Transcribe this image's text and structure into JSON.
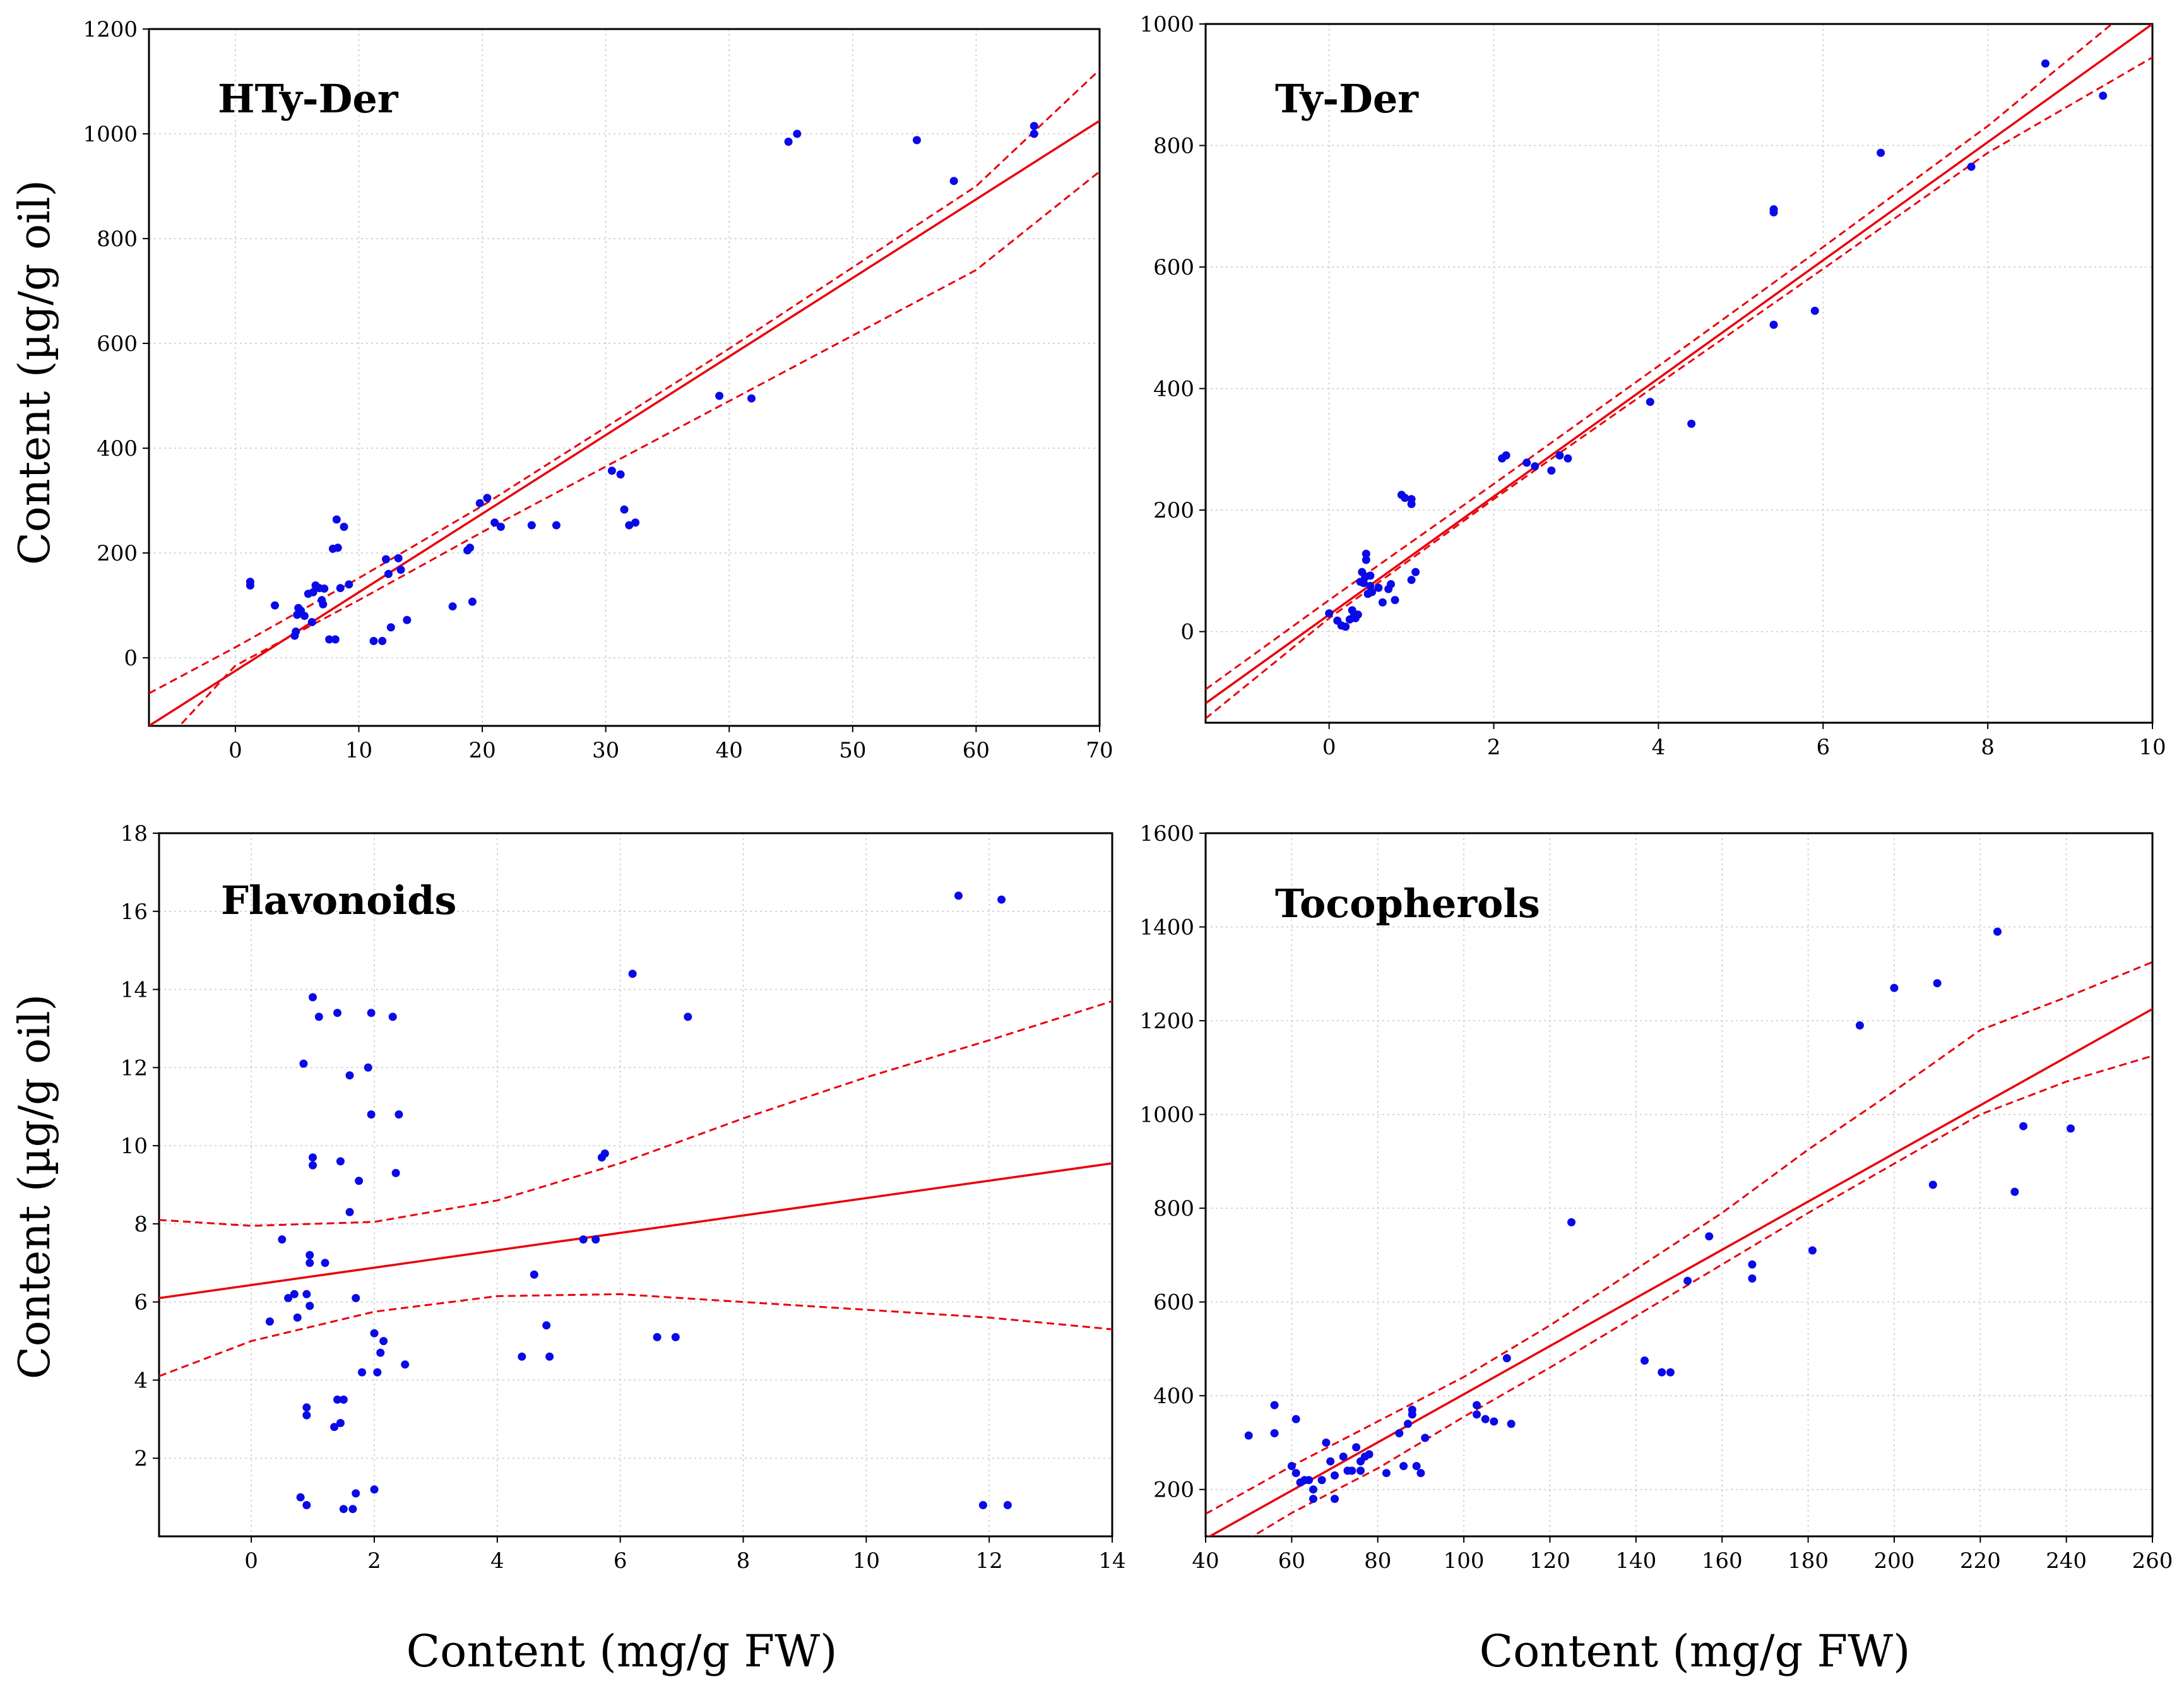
{
  "y_axis_label": "Content (µg/g oil)",
  "x_axis_label": "Content (mg/g FW)",
  "chart_data": [
    {
      "type": "scatter",
      "title": "HTy-Der",
      "xlim": [
        -7,
        70
      ],
      "ylim": [
        -130,
        1200
      ],
      "xticks": [
        0,
        10,
        20,
        30,
        40,
        50,
        60,
        70
      ],
      "yticks": [
        0,
        200,
        400,
        600,
        800,
        1000,
        1200
      ],
      "fit": [
        [
          -7,
          -130
        ],
        [
          70,
          1025
        ]
      ],
      "ci_upper": [
        [
          -7,
          -68
        ],
        [
          0,
          20
        ],
        [
          10,
          152
        ],
        [
          20,
          290
        ],
        [
          30,
          440
        ],
        [
          40,
          590
        ],
        [
          50,
          745
        ],
        [
          60,
          900
        ],
        [
          70,
          1122
        ]
      ],
      "ci_lower": [
        [
          -7,
          -193
        ],
        [
          0,
          -15
        ],
        [
          10,
          110
        ],
        [
          20,
          240
        ],
        [
          30,
          365
        ],
        [
          40,
          490
        ],
        [
          50,
          615
        ],
        [
          60,
          740
        ],
        [
          70,
          928
        ]
      ],
      "points": [
        [
          1.2,
          145
        ],
        [
          1.2,
          138
        ],
        [
          3.2,
          100
        ],
        [
          4.8,
          42
        ],
        [
          4.9,
          50
        ],
        [
          5.0,
          82
        ],
        [
          5.1,
          95
        ],
        [
          5.3,
          90
        ],
        [
          5.6,
          80
        ],
        [
          5.9,
          122
        ],
        [
          6.2,
          68
        ],
        [
          6.3,
          125
        ],
        [
          6.5,
          138
        ],
        [
          6.8,
          133
        ],
        [
          7.0,
          110
        ],
        [
          7.1,
          102
        ],
        [
          7.2,
          132
        ],
        [
          7.6,
          35
        ],
        [
          7.9,
          208
        ],
        [
          8.1,
          35
        ],
        [
          8.2,
          264
        ],
        [
          8.3,
          210
        ],
        [
          8.5,
          133
        ],
        [
          8.8,
          250
        ],
        [
          9.2,
          140
        ],
        [
          11.2,
          32
        ],
        [
          11.9,
          32
        ],
        [
          12.2,
          188
        ],
        [
          12.4,
          160
        ],
        [
          12.6,
          58
        ],
        [
          13.2,
          190
        ],
        [
          13.4,
          168
        ],
        [
          13.9,
          72
        ],
        [
          17.6,
          98
        ],
        [
          18.8,
          205
        ],
        [
          19.0,
          210
        ],
        [
          19.2,
          107
        ],
        [
          19.8,
          295
        ],
        [
          20.4,
          305
        ],
        [
          21.0,
          258
        ],
        [
          21.5,
          250
        ],
        [
          24.0,
          253
        ],
        [
          26.0,
          253
        ],
        [
          30.5,
          357
        ],
        [
          31.2,
          350
        ],
        [
          31.5,
          283
        ],
        [
          31.9,
          253
        ],
        [
          32.4,
          258
        ],
        [
          39.2,
          500
        ],
        [
          41.8,
          495
        ],
        [
          44.8,
          985
        ],
        [
          45.5,
          1000
        ],
        [
          55.2,
          988
        ],
        [
          58.2,
          910
        ],
        [
          64.7,
          1015
        ],
        [
          64.7,
          1000
        ]
      ]
    },
    {
      "type": "scatter",
      "title": "Ty-Der",
      "xlim": [
        -1.5,
        10
      ],
      "ylim": [
        -150,
        1000
      ],
      "xticks": [
        0,
        2,
        4,
        6,
        8,
        10
      ],
      "yticks": [
        0,
        200,
        400,
        600,
        800,
        1000
      ],
      "fit": [
        [
          -1.5,
          -118
        ],
        [
          10,
          1000
        ]
      ],
      "ci_upper": [
        [
          -1.5,
          -95
        ],
        [
          0,
          52
        ],
        [
          2,
          243
        ],
        [
          4,
          437
        ],
        [
          6,
          633
        ],
        [
          8,
          832
        ],
        [
          10,
          1055
        ]
      ],
      "ci_lower": [
        [
          -1.5,
          -143
        ],
        [
          0,
          22
        ],
        [
          2,
          218
        ],
        [
          4,
          408
        ],
        [
          6,
          597
        ],
        [
          8,
          788
        ],
        [
          10,
          945
        ]
      ],
      "points": [
        [
          0.0,
          30
        ],
        [
          0.1,
          18
        ],
        [
          0.15,
          10
        ],
        [
          0.2,
          8
        ],
        [
          0.25,
          20
        ],
        [
          0.28,
          35
        ],
        [
          0.3,
          25
        ],
        [
          0.32,
          22
        ],
        [
          0.35,
          28
        ],
        [
          0.38,
          82
        ],
        [
          0.4,
          98
        ],
        [
          0.42,
          80
        ],
        [
          0.44,
          90
        ],
        [
          0.45,
          118
        ],
        [
          0.45,
          128
        ],
        [
          0.47,
          62
        ],
        [
          0.5,
          92
        ],
        [
          0.5,
          75
        ],
        [
          0.52,
          65
        ],
        [
          0.6,
          72
        ],
        [
          0.65,
          48
        ],
        [
          0.72,
          70
        ],
        [
          0.75,
          78
        ],
        [
          0.8,
          52
        ],
        [
          0.88,
          225
        ],
        [
          0.92,
          220
        ],
        [
          1.0,
          218
        ],
        [
          1.0,
          210
        ],
        [
          1.0,
          85
        ],
        [
          1.05,
          98
        ],
        [
          2.1,
          285
        ],
        [
          2.15,
          290
        ],
        [
          2.4,
          278
        ],
        [
          2.5,
          272
        ],
        [
          2.7,
          265
        ],
        [
          2.8,
          290
        ],
        [
          2.9,
          285
        ],
        [
          3.9,
          378
        ],
        [
          4.4,
          342
        ],
        [
          5.4,
          505
        ],
        [
          5.4,
          690
        ],
        [
          5.4,
          695
        ],
        [
          5.9,
          528
        ],
        [
          6.7,
          788
        ],
        [
          7.8,
          765
        ],
        [
          8.7,
          935
        ],
        [
          9.4,
          882
        ]
      ]
    },
    {
      "type": "scatter",
      "title": "Flavonoids",
      "xlim": [
        -1.5,
        14
      ],
      "ylim": [
        0,
        18
      ],
      "xticks": [
        0,
        2,
        4,
        6,
        8,
        10,
        12,
        14
      ],
      "yticks": [
        2,
        4,
        6,
        8,
        10,
        12,
        14,
        16,
        18
      ],
      "fit": [
        [
          -1.5,
          6.1
        ],
        [
          14,
          9.55
        ]
      ],
      "ci_upper": [
        [
          -1.5,
          8.1
        ],
        [
          0,
          7.95
        ],
        [
          2,
          8.05
        ],
        [
          4,
          8.6
        ],
        [
          6,
          9.55
        ],
        [
          8,
          10.7
        ],
        [
          10,
          11.75
        ],
        [
          12,
          12.7
        ],
        [
          14,
          13.7
        ]
      ],
      "ci_lower": [
        [
          -1.5,
          4.1
        ],
        [
          0,
          5.0
        ],
        [
          2,
          5.75
        ],
        [
          4,
          6.15
        ],
        [
          6,
          6.2
        ],
        [
          8,
          6.0
        ],
        [
          10,
          5.8
        ],
        [
          12,
          5.6
        ],
        [
          14,
          5.3
        ]
      ],
      "points": [
        [
          0.3,
          5.5
        ],
        [
          0.5,
          7.6
        ],
        [
          0.6,
          6.1
        ],
        [
          0.7,
          6.2
        ],
        [
          0.75,
          5.6
        ],
        [
          0.8,
          1.0
        ],
        [
          0.85,
          12.1
        ],
        [
          0.9,
          0.8
        ],
        [
          0.9,
          6.2
        ],
        [
          0.9,
          3.3
        ],
        [
          0.9,
          3.1
        ],
        [
          0.95,
          7.2
        ],
        [
          0.95,
          7.0
        ],
        [
          0.95,
          5.9
        ],
        [
          1.0,
          13.8
        ],
        [
          1.0,
          9.7
        ],
        [
          1.0,
          9.5
        ],
        [
          1.1,
          13.3
        ],
        [
          1.2,
          7.0
        ],
        [
          1.35,
          2.8
        ],
        [
          1.4,
          3.5
        ],
        [
          1.4,
          13.4
        ],
        [
          1.45,
          9.6
        ],
        [
          1.45,
          2.9
        ],
        [
          1.5,
          3.5
        ],
        [
          1.5,
          0.7
        ],
        [
          1.6,
          11.8
        ],
        [
          1.6,
          8.3
        ],
        [
          1.65,
          0.7
        ],
        [
          1.7,
          6.1
        ],
        [
          1.7,
          1.1
        ],
        [
          1.75,
          9.1
        ],
        [
          1.8,
          4.2
        ],
        [
          1.9,
          12.0
        ],
        [
          1.95,
          13.4
        ],
        [
          1.95,
          10.8
        ],
        [
          2.0,
          1.2
        ],
        [
          2.0,
          5.2
        ],
        [
          2.05,
          4.2
        ],
        [
          2.1,
          4.7
        ],
        [
          2.15,
          5.0
        ],
        [
          2.3,
          13.3
        ],
        [
          2.35,
          9.3
        ],
        [
          2.4,
          10.8
        ],
        [
          2.5,
          4.4
        ],
        [
          4.4,
          4.6
        ],
        [
          4.6,
          6.7
        ],
        [
          4.8,
          5.4
        ],
        [
          4.85,
          4.6
        ],
        [
          5.4,
          7.6
        ],
        [
          5.6,
          7.6
        ],
        [
          5.7,
          9.7
        ],
        [
          5.75,
          9.8
        ],
        [
          6.2,
          14.4
        ],
        [
          6.6,
          5.1
        ],
        [
          6.9,
          5.1
        ],
        [
          7.1,
          13.3
        ],
        [
          11.5,
          16.4
        ],
        [
          11.9,
          0.8
        ],
        [
          12.2,
          16.3
        ],
        [
          12.3,
          0.8
        ]
      ]
    },
    {
      "type": "scatter",
      "title": "Tocopherols",
      "xlim": [
        40,
        260
      ],
      "ylim": [
        100,
        1600
      ],
      "xticks": [
        40,
        60,
        80,
        100,
        120,
        140,
        160,
        180,
        200,
        220,
        240,
        260
      ],
      "yticks": [
        200,
        400,
        600,
        800,
        1000,
        1200,
        1400,
        1600
      ],
      "fit": [
        [
          40,
          95
        ],
        [
          260,
          1225
        ]
      ],
      "ci_upper": [
        [
          40,
          148
        ],
        [
          60,
          250
        ],
        [
          80,
          345
        ],
        [
          100,
          440
        ],
        [
          120,
          550
        ],
        [
          140,
          670
        ],
        [
          160,
          790
        ],
        [
          180,
          925
        ],
        [
          200,
          1050
        ],
        [
          220,
          1180
        ],
        [
          240,
          1250
        ],
        [
          260,
          1325
        ]
      ],
      "ci_lower": [
        [
          40,
          40
        ],
        [
          60,
          150
        ],
        [
          80,
          245
        ],
        [
          100,
          355
        ],
        [
          120,
          460
        ],
        [
          140,
          570
        ],
        [
          160,
          680
        ],
        [
          180,
          790
        ],
        [
          200,
          895
        ],
        [
          220,
          1000
        ],
        [
          240,
          1070
        ],
        [
          260,
          1125
        ]
      ],
      "points": [
        [
          50,
          315
        ],
        [
          56,
          380
        ],
        [
          56,
          320
        ],
        [
          60,
          250
        ],
        [
          61,
          235
        ],
        [
          61,
          350
        ],
        [
          62,
          215
        ],
        [
          63,
          220
        ],
        [
          64,
          220
        ],
        [
          65,
          200
        ],
        [
          65,
          180
        ],
        [
          67,
          220
        ],
        [
          68,
          300
        ],
        [
          69,
          260
        ],
        [
          70,
          180
        ],
        [
          70,
          230
        ],
        [
          72,
          270
        ],
        [
          73,
          240
        ],
        [
          74,
          240
        ],
        [
          75,
          290
        ],
        [
          76,
          260
        ],
        [
          76,
          240
        ],
        [
          77,
          270
        ],
        [
          78,
          275
        ],
        [
          82,
          235
        ],
        [
          85,
          320
        ],
        [
          86,
          250
        ],
        [
          87,
          340
        ],
        [
          88,
          370
        ],
        [
          88,
          360
        ],
        [
          89,
          250
        ],
        [
          90,
          235
        ],
        [
          91,
          310
        ],
        [
          103,
          360
        ],
        [
          103,
          380
        ],
        [
          105,
          350
        ],
        [
          107,
          345
        ],
        [
          110,
          480
        ],
        [
          111,
          340
        ],
        [
          125,
          770
        ],
        [
          142,
          475
        ],
        [
          146,
          450
        ],
        [
          148,
          450
        ],
        [
          152,
          645
        ],
        [
          157,
          740
        ],
        [
          167,
          680
        ],
        [
          167,
          650
        ],
        [
          181,
          710
        ],
        [
          192,
          1190
        ],
        [
          200,
          1270
        ],
        [
          209,
          850
        ],
        [
          210,
          1280
        ],
        [
          224,
          1390
        ],
        [
          228,
          835
        ],
        [
          230,
          975
        ],
        [
          241,
          970
        ]
      ]
    }
  ]
}
